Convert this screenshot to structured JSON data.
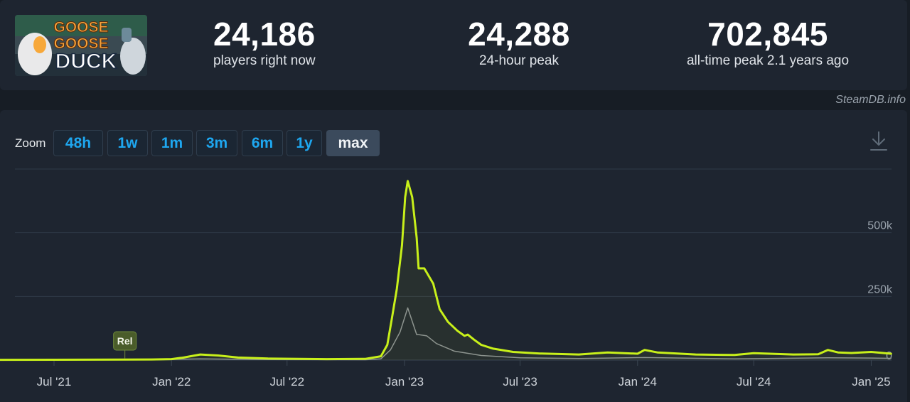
{
  "game": {
    "logo_text_1": "GOOSE",
    "logo_text_2": "GOOSE",
    "logo_text_3": "DUCK"
  },
  "stats": [
    {
      "value": "24,186",
      "label": "players right now"
    },
    {
      "value": "24,288",
      "label": "24-hour peak"
    },
    {
      "value": "702,845",
      "label": "all-time peak 2.1 years ago"
    }
  ],
  "credit": "SteamDB.info",
  "zoom": {
    "label": "Zoom",
    "buttons": [
      "48h",
      "1w",
      "1m",
      "3m",
      "6m",
      "1y",
      "max"
    ],
    "active": "max"
  },
  "icons": {
    "download": "download-icon"
  },
  "colors": {
    "primary_line": "#c8f01a",
    "secondary_line": "#8a8f96",
    "accent": "#1ea7f0"
  },
  "chart_data": {
    "type": "line",
    "x_tick_labels": [
      "Jul '21",
      "Jan '22",
      "Jul '22",
      "Jan '23",
      "Jul '23",
      "Jan '24",
      "Jul '24",
      "Jan '25"
    ],
    "y_tick_labels": [
      "0",
      "250k",
      "500k"
    ],
    "ylim": [
      0,
      750000
    ],
    "grid": true,
    "annotations": [
      {
        "label": "Rel",
        "x": "2021-10-20"
      }
    ],
    "series": [
      {
        "color": "#c8f01a",
        "points": [
          [
            "2021-04-01",
            1000
          ],
          [
            "2021-07-01",
            1500
          ],
          [
            "2021-10-20",
            2000
          ],
          [
            "2021-12-01",
            2500
          ],
          [
            "2022-01-01",
            4000
          ],
          [
            "2022-01-20",
            10000
          ],
          [
            "2022-02-15",
            22000
          ],
          [
            "2022-03-15",
            18000
          ],
          [
            "2022-04-15",
            10000
          ],
          [
            "2022-06-01",
            6000
          ],
          [
            "2022-09-01",
            4000
          ],
          [
            "2022-11-01",
            5000
          ],
          [
            "2022-11-25",
            15000
          ],
          [
            "2022-12-05",
            60000
          ],
          [
            "2022-12-12",
            160000
          ],
          [
            "2022-12-20",
            280000
          ],
          [
            "2022-12-28",
            450000
          ],
          [
            "2023-01-02",
            640000
          ],
          [
            "2023-01-06",
            702845
          ],
          [
            "2023-01-13",
            640000
          ],
          [
            "2023-01-20",
            480000
          ],
          [
            "2023-01-23",
            360000
          ],
          [
            "2023-02-01",
            360000
          ],
          [
            "2023-02-15",
            300000
          ],
          [
            "2023-02-25",
            200000
          ],
          [
            "2023-03-10",
            150000
          ],
          [
            "2023-03-25",
            115000
          ],
          [
            "2023-04-05",
            95000
          ],
          [
            "2023-04-10",
            100000
          ],
          [
            "2023-04-20",
            80000
          ],
          [
            "2023-05-01",
            60000
          ],
          [
            "2023-05-20",
            45000
          ],
          [
            "2023-06-20",
            32000
          ],
          [
            "2023-08-01",
            26000
          ],
          [
            "2023-10-01",
            22000
          ],
          [
            "2023-11-15",
            30000
          ],
          [
            "2024-01-01",
            25000
          ],
          [
            "2024-01-12",
            40000
          ],
          [
            "2024-02-01",
            30000
          ],
          [
            "2024-04-01",
            22000
          ],
          [
            "2024-06-01",
            20000
          ],
          [
            "2024-07-01",
            27000
          ],
          [
            "2024-09-01",
            22000
          ],
          [
            "2024-10-10",
            23000
          ],
          [
            "2024-10-25",
            40000
          ],
          [
            "2024-11-10",
            30000
          ],
          [
            "2024-12-01",
            28000
          ],
          [
            "2025-01-01",
            32000
          ],
          [
            "2025-02-01",
            25000
          ]
        ]
      },
      {
        "color": "#8a8f96",
        "points": [
          [
            "2021-04-01",
            300
          ],
          [
            "2021-12-01",
            800
          ],
          [
            "2022-02-15",
            5000
          ],
          [
            "2022-06-01",
            2000
          ],
          [
            "2022-11-01",
            1500
          ],
          [
            "2022-11-25",
            5000
          ],
          [
            "2022-12-10",
            40000
          ],
          [
            "2022-12-25",
            110000
          ],
          [
            "2023-01-06",
            205000
          ],
          [
            "2023-01-20",
            100000
          ],
          [
            "2023-01-23",
            100000
          ],
          [
            "2023-02-05",
            95000
          ],
          [
            "2023-02-20",
            65000
          ],
          [
            "2023-03-20",
            35000
          ],
          [
            "2023-05-01",
            18000
          ],
          [
            "2023-07-01",
            9000
          ],
          [
            "2023-10-01",
            6000
          ],
          [
            "2024-01-12",
            10000
          ],
          [
            "2024-06-01",
            5000
          ],
          [
            "2024-10-25",
            9000
          ],
          [
            "2025-01-01",
            8000
          ],
          [
            "2025-02-01",
            7000
          ]
        ]
      }
    ]
  }
}
